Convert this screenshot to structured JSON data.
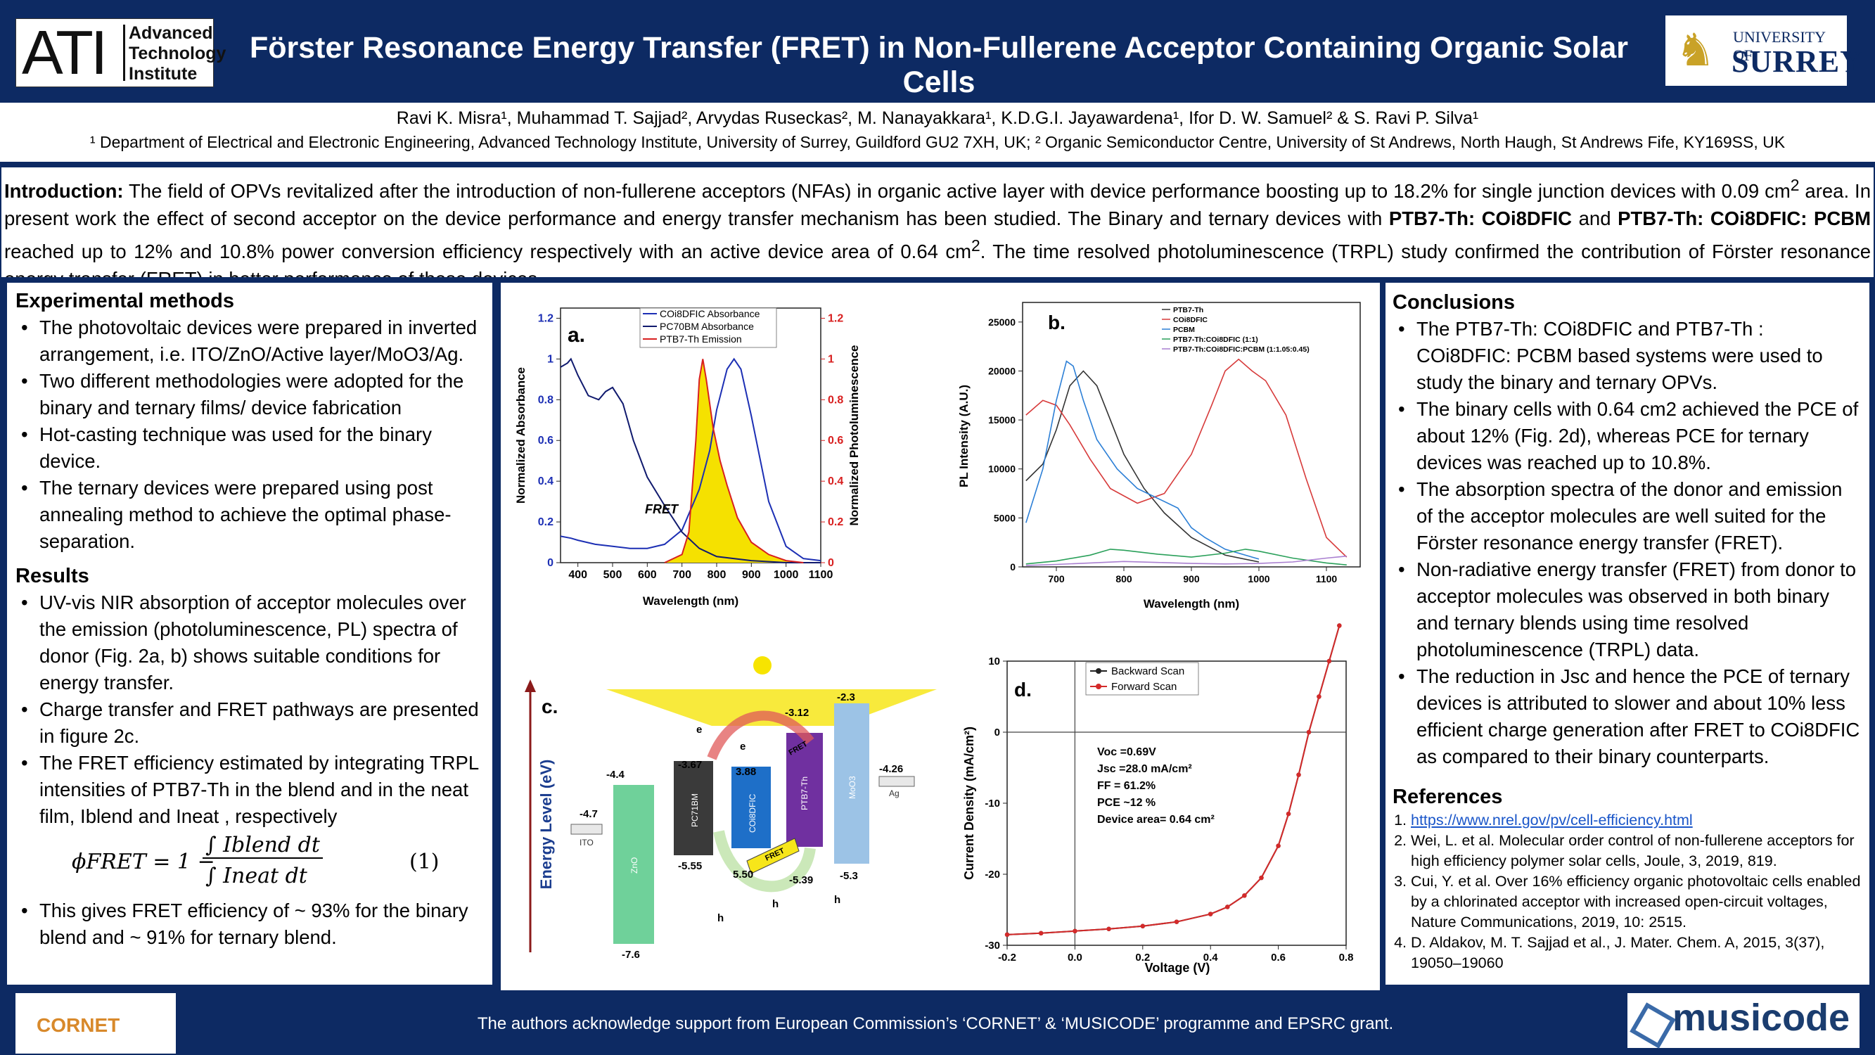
{
  "header": {
    "title": "Förster Resonance Energy Transfer (FRET) in Non-Fullerene Acceptor Containing Organic Solar Cells",
    "logo_left": {
      "initials": "ATI",
      "line1": "Advanced",
      "line2": "Technology",
      "line3": "Institute"
    },
    "logo_right": {
      "line1": "UNIVERSITY OF",
      "line2": "SURREY"
    }
  },
  "authors": "Ravi K. Misra¹, Muhammad T. Sajjad², Arvydas Ruseckas², M. Nanayakkara¹, K.D.G.I. Jayawardena¹, Ifor D. W. Samuel² & S. Ravi P. Silva¹",
  "affiliations": "¹ Department of Electrical and Electronic Engineering, Advanced Technology Institute, University of Surrey, Guildford GU2 7XH, UK; ² Organic Semiconductor Centre, University of St Andrews, North Haugh, St Andrews Fife, KY169SS, UK",
  "intro": {
    "label": "Introduction:",
    "p1": " The field of OPVs revitalized after the introduction of non-fullerene acceptors (NFAs) in organic active layer with device performance boosting up to 18.2% for single junction devices with 0.09 cm",
    "p2": " area. In present work the effect of second acceptor on the device performance and energy transfer mechanism has been studied. The Binary and ternary devices with ",
    "b1": "PTB7-Th: COi8DFIC",
    "p3": " and ",
    "b2": "PTB7-Th: COi8DFIC: PCBM",
    "p4": " reached up to 12% and 10.8% power conversion efficiency respectively with an active device area of 0.64 cm",
    "p5": ". The time resolved photoluminescence (TRPL) study confirmed the contribution of Förster resonance energy transfer (FRET) in better performance of these devices.",
    "sup": "2"
  },
  "methods": {
    "heading": "Experimental methods",
    "items": [
      "The photovoltaic devices were prepared in inverted arrangement, i.e. ITO/ZnO/Active layer/MoO3/Ag.",
      "Two different methodologies were adopted for the binary and ternary films/ device fabrication",
      "Hot-casting technique was used for the binary device.",
      "The ternary devices were prepared using post annealing method to achieve the optimal phase-separation."
    ]
  },
  "results": {
    "heading": "Results",
    "items": [
      "UV-vis NIR absorption of acceptor molecules over the emission (photoluminescence, PL) spectra of donor (Fig. 2a, b) shows suitable conditions for energy transfer.",
      "Charge transfer and FRET pathways are presented in figure 2c.",
      "The FRET efficiency estimated by integrating TRPL intensities of PTB7-Th in the blend and in the neat film, Iblend and Ineat , respectively"
    ],
    "equation": {
      "lhs": "ϕFRET = 1 −",
      "num": "∫ Iblend dt",
      "den": "∫ Ineat dt",
      "number": "(1)"
    },
    "final": "This gives FRET efficiency of ~ 93% for the binary blend and ~ 91% for ternary blend."
  },
  "conclusions": {
    "heading": "Conclusions",
    "items": [
      "The PTB7-Th: COi8DFIC and PTB7-Th : COi8DFIC: PCBM based systems were used to study the binary and ternary OPVs.",
      "The binary cells with 0.64 cm2 achieved the PCE of about 12% (Fig. 2d), whereas PCE for ternary devices was reached up to 10.8%.",
      "The absorption spectra of the donor and emission of the acceptor molecules are well suited for the Förster resonance energy transfer (FRET).",
      "Non-radiative energy transfer (FRET) from donor to acceptor molecules was observed in both binary and ternary blends using time resolved photoluminescence (TRPL) data.",
      "The reduction in Jsc and hence the PCE of ternary devices is attributed to slower and about 10% less efficient charge generation after FRET to COi8DFIC as compared to their binary counterparts."
    ]
  },
  "references": {
    "heading": "References",
    "items": [
      "https://www.nrel.gov/pv/cell-efficiency.html",
      "Wei, L. et al. Molecular order control of non-fullerene acceptors for high efficiency polymer solar cells, Joule, 3, 2019, 819.",
      "Cui, Y. et al. Over 16% efficiency organic photovoltaic cells enabled by a chlorinated acceptor with increased open-circuit voltages, Nature Communications, 2019, 10: 2515.",
      "D. Aldakov, M. T. Sajjad et al., J. Mater. Chem. A, 2015, 3(37), 19050–19060"
    ]
  },
  "footer": {
    "acknowledgement": "The authors acknowledge support from  European Commission’s  ‘CORNET’ & ‘MUSICODE’ programme and EPSRC grant.",
    "logo_left": "CORNET",
    "logo_right": "musicode"
  },
  "chart_data": [
    {
      "type": "line",
      "panel": "a.",
      "xlabel": "Wavelength (nm)",
      "ylabel": "Normalized Absorbance",
      "y2label": "Normalized Photoluminescence",
      "xlim": [
        350,
        1100
      ],
      "ylim": [
        0,
        1.25
      ],
      "xticks": [
        400,
        500,
        600,
        700,
        800,
        900,
        1000,
        1100
      ],
      "yticks": [
        0,
        0.2,
        0.4,
        0.6,
        0.8,
        1,
        1.2
      ],
      "annotation": "FRET",
      "series": [
        {
          "name": "COi8DFIC Absorbance",
          "color": "#1c2fb4",
          "x": [
            350,
            380,
            400,
            450,
            500,
            550,
            600,
            650,
            700,
            750,
            780,
            800,
            830,
            850,
            870,
            900,
            950,
            1000,
            1050,
            1100
          ],
          "y": [
            0.13,
            0.12,
            0.11,
            0.09,
            0.08,
            0.07,
            0.07,
            0.09,
            0.16,
            0.36,
            0.55,
            0.75,
            0.95,
            1.0,
            0.95,
            0.72,
            0.3,
            0.08,
            0.02,
            0.01
          ]
        },
        {
          "name": "PC70BM Absorbance",
          "color": "#101a6e",
          "x": [
            350,
            370,
            380,
            400,
            430,
            460,
            480,
            500,
            530,
            560,
            600,
            650,
            700,
            750,
            800,
            900,
            1000,
            1100
          ],
          "y": [
            0.96,
            0.98,
            1.0,
            0.92,
            0.82,
            0.8,
            0.84,
            0.86,
            0.78,
            0.6,
            0.42,
            0.28,
            0.15,
            0.07,
            0.03,
            0.01,
            0.0,
            0.0
          ]
        },
        {
          "name": "PTB7-Th Emission",
          "color": "#d82020",
          "x": [
            650,
            700,
            720,
            740,
            750,
            760,
            770,
            790,
            810,
            830,
            860,
            900,
            950,
            1000,
            1050
          ],
          "y": [
            0.0,
            0.04,
            0.15,
            0.6,
            0.9,
            1.0,
            0.9,
            0.66,
            0.5,
            0.38,
            0.22,
            0.1,
            0.04,
            0.01,
            0.0
          ]
        }
      ]
    },
    {
      "type": "line",
      "panel": "b.",
      "xlabel": "Wavelength (nm)",
      "ylabel": "PL Intensity (A.U.)",
      "xlim": [
        650,
        1150
      ],
      "ylim": [
        0,
        27000
      ],
      "xticks": [
        700,
        800,
        900,
        1000,
        1100
      ],
      "yticks": [
        0,
        5000,
        10000,
        15000,
        20000,
        25000
      ],
      "series": [
        {
          "name": "PTB7-Th",
          "color": "#333333",
          "x": [
            655,
            680,
            700,
            720,
            740,
            760,
            780,
            800,
            830,
            860,
            900,
            950,
            1000
          ],
          "y": [
            8800,
            10500,
            14000,
            18500,
            20000,
            18500,
            15000,
            11500,
            8000,
            5500,
            3000,
            1200,
            500
          ]
        },
        {
          "name": "COi8DFIC",
          "color": "#d73a3a",
          "x": [
            655,
            680,
            700,
            720,
            750,
            780,
            820,
            860,
            900,
            930,
            950,
            970,
            990,
            1010,
            1040,
            1070,
            1100,
            1130
          ],
          "y": [
            15500,
            17000,
            16500,
            14500,
            11000,
            8000,
            6500,
            7500,
            11500,
            16500,
            20000,
            21200,
            20000,
            19000,
            15500,
            9000,
            3000,
            1000
          ]
        },
        {
          "name": "PCBM",
          "color": "#2c7fd6",
          "x": [
            655,
            680,
            700,
            715,
            725,
            740,
            760,
            790,
            820,
            850,
            880,
            900,
            920,
            950,
            1000
          ],
          "y": [
            4500,
            10000,
            17000,
            21000,
            20500,
            17000,
            13000,
            10000,
            8000,
            7000,
            6000,
            4000,
            3000,
            1800,
            800
          ]
        },
        {
          "name": "PTB7-Th:COi8DFIC (1:1)",
          "color": "#2aa05a",
          "x": [
            655,
            700,
            750,
            780,
            800,
            850,
            900,
            950,
            980,
            1000,
            1050,
            1100,
            1130
          ],
          "y": [
            300,
            600,
            1200,
            1800,
            1700,
            1300,
            1000,
            1400,
            1800,
            1600,
            900,
            400,
            200
          ]
        },
        {
          "name": "PTB7-Th:COi8DFIC:PCBM (1:1.05:0.45)",
          "color": "#a97fd0",
          "x": [
            655,
            700,
            750,
            800,
            850,
            900,
            950,
            1000,
            1050,
            1100,
            1130
          ],
          "y": [
            150,
            250,
            400,
            550,
            450,
            350,
            300,
            350,
            500,
            900,
            1100
          ]
        }
      ]
    },
    {
      "type": "diagram",
      "panel": "c.",
      "ylabel": "Energy Level (eV)",
      "levels": [
        {
          "name": "ITO",
          "top": "-4.7"
        },
        {
          "name": "ZnO",
          "top": "-4.4",
          "bottom": "-7.6"
        },
        {
          "name": "PC71BM",
          "top": "-3.67",
          "bottom": "-5.55"
        },
        {
          "name": "COi8DFIC",
          "top": "3.88",
          "bottom": "5.50"
        },
        {
          "name": "PTB7-Th",
          "top": "-3.12",
          "bottom": "-5.39"
        },
        {
          "name": "MoO3",
          "top": "-2.3",
          "bottom": "-5.3"
        },
        {
          "name": "Ag",
          "top": "-4.26"
        }
      ],
      "labels": [
        "e",
        "e",
        "h",
        "h",
        "h",
        "FRET",
        "FRET"
      ]
    },
    {
      "type": "scatter",
      "panel": "d.",
      "xlabel": "Voltage (V)",
      "ylabel": "Current Density (mA/cm²)",
      "xlim": [
        -0.2,
        0.8
      ],
      "ylim": [
        -30,
        10
      ],
      "xticks": [
        -0.2,
        0.0,
        0.2,
        0.4,
        0.6,
        0.8
      ],
      "yticks": [
        10,
        0,
        -10,
        -20,
        -30
      ],
      "annotation": [
        "Voc =0.69V",
        "Jsc =28.0 mA/cm²",
        "FF = 61.2%",
        "PCE ~12 %",
        "Device area= 0.64 cm²"
      ],
      "series": [
        {
          "name": "Backward Scan",
          "color": "#222222",
          "x": [
            -0.2,
            -0.1,
            0.0,
            0.1,
            0.2,
            0.3,
            0.4,
            0.45,
            0.5,
            0.55,
            0.6,
            0.63,
            0.66,
            0.69,
            0.72,
            0.75,
            0.78
          ],
          "y": [
            -28.5,
            -28.3,
            -28.0,
            -27.7,
            -27.3,
            -26.7,
            -25.6,
            -24.6,
            -23.0,
            -20.5,
            -16.0,
            -11.5,
            -6.0,
            0.0,
            5.0,
            10.0,
            15.0
          ]
        },
        {
          "name": "Forward Scan",
          "color": "#d42a2a",
          "x": [
            -0.2,
            -0.1,
            0.0,
            0.1,
            0.2,
            0.3,
            0.4,
            0.45,
            0.5,
            0.55,
            0.6,
            0.63,
            0.66,
            0.69,
            0.72,
            0.75,
            0.78
          ],
          "y": [
            -28.5,
            -28.3,
            -28.0,
            -27.7,
            -27.3,
            -26.7,
            -25.6,
            -24.6,
            -23.0,
            -20.5,
            -16.0,
            -11.5,
            -6.0,
            0.0,
            5.0,
            10.0,
            15.0
          ]
        }
      ]
    }
  ]
}
